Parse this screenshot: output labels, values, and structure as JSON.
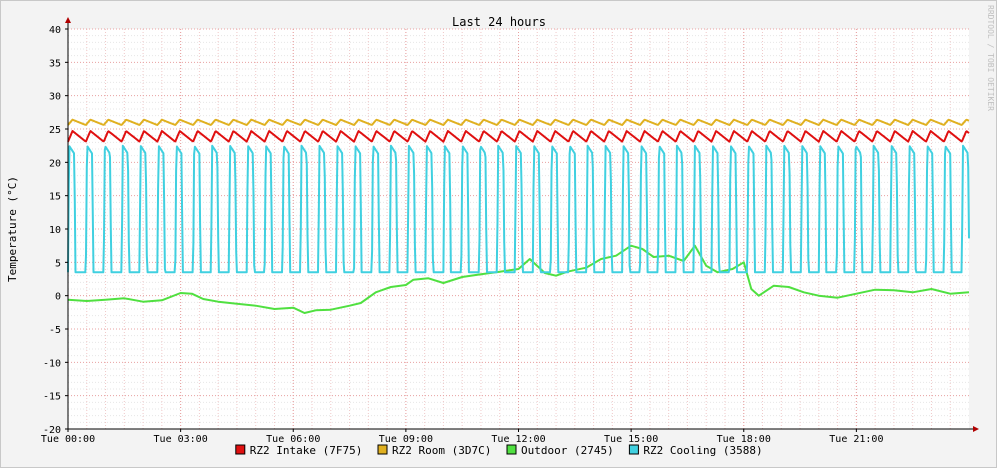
{
  "chart_data": {
    "type": "line",
    "title": "Last 24 hours",
    "xlabel": "",
    "ylabel": "Temperature (°C)",
    "watermark": "RRDTOOL / TOBI OETIKER",
    "x_ticks": [
      "Tue 00:00",
      "Tue 03:00",
      "Tue 06:00",
      "Tue 09:00",
      "Tue 12:00",
      "Tue 15:00",
      "Tue 18:00",
      "Tue 21:00"
    ],
    "x_range_hours": [
      0,
      24
    ],
    "y_ticks": [
      40,
      35,
      30,
      25,
      20,
      15,
      10,
      5,
      0,
      -5,
      -10,
      -15,
      -20
    ],
    "ylim": [
      -20,
      40
    ],
    "grid": true,
    "legend_position": "bottom",
    "series": [
      {
        "name": "RZ2 Intake (7F75)",
        "color": "#e01010",
        "shape": "sawtooth",
        "cycles_per_hour": 2.1,
        "low": 23.1,
        "high": 24.7
      },
      {
        "name": "RZ2 Room (3D7C)",
        "color": "#e0b020",
        "shape": "sawtooth",
        "cycles_per_hour": 2.1,
        "low": 25.6,
        "high": 26.4
      },
      {
        "name": "Outdoor (2745)",
        "color": "#50e040",
        "shape": "line",
        "x_hours": [
          0,
          0.5,
          1,
          1.5,
          2,
          2.5,
          3,
          3.3,
          3.6,
          4,
          4.5,
          5,
          5.5,
          6,
          6.3,
          6.6,
          7,
          7.5,
          7.8,
          8.2,
          8.6,
          9,
          9.2,
          9.6,
          10,
          10.5,
          11,
          11.5,
          12,
          12.3,
          12.7,
          13,
          13.3,
          13.8,
          14.2,
          14.6,
          15,
          15.3,
          15.6,
          16,
          16.4,
          16.7,
          17,
          17.3,
          17.7,
          18,
          18.2,
          18.4,
          18.8,
          19.2,
          19.6,
          20,
          20.5,
          21,
          21.5,
          22,
          22.5,
          23,
          23.5,
          24
        ],
        "values": [
          -0.6,
          -0.8,
          -0.6,
          -0.4,
          -0.9,
          -0.7,
          0.4,
          0.3,
          -0.5,
          -0.9,
          -1.2,
          -1.5,
          -2.0,
          -1.8,
          -2.6,
          -2.2,
          -2.1,
          -1.5,
          -1.1,
          0.5,
          1.3,
          1.6,
          2.4,
          2.6,
          1.9,
          2.8,
          3.2,
          3.6,
          4.0,
          5.5,
          3.4,
          3.0,
          3.6,
          4.2,
          5.5,
          6.0,
          7.5,
          7.0,
          5.8,
          6.0,
          5.2,
          7.5,
          4.5,
          3.5,
          4.0,
          5.0,
          1.0,
          0.0,
          1.5,
          1.3,
          0.5,
          0.0,
          -0.3,
          0.3,
          0.9,
          0.8,
          0.5,
          1.0,
          0.3,
          0.5
        ]
      },
      {
        "name": "RZ2 Cooling (3588)",
        "color": "#40d0e0",
        "shape": "pulse",
        "cycles_per_hour": 2.1,
        "low": 3.5,
        "high": 22.5
      }
    ]
  }
}
